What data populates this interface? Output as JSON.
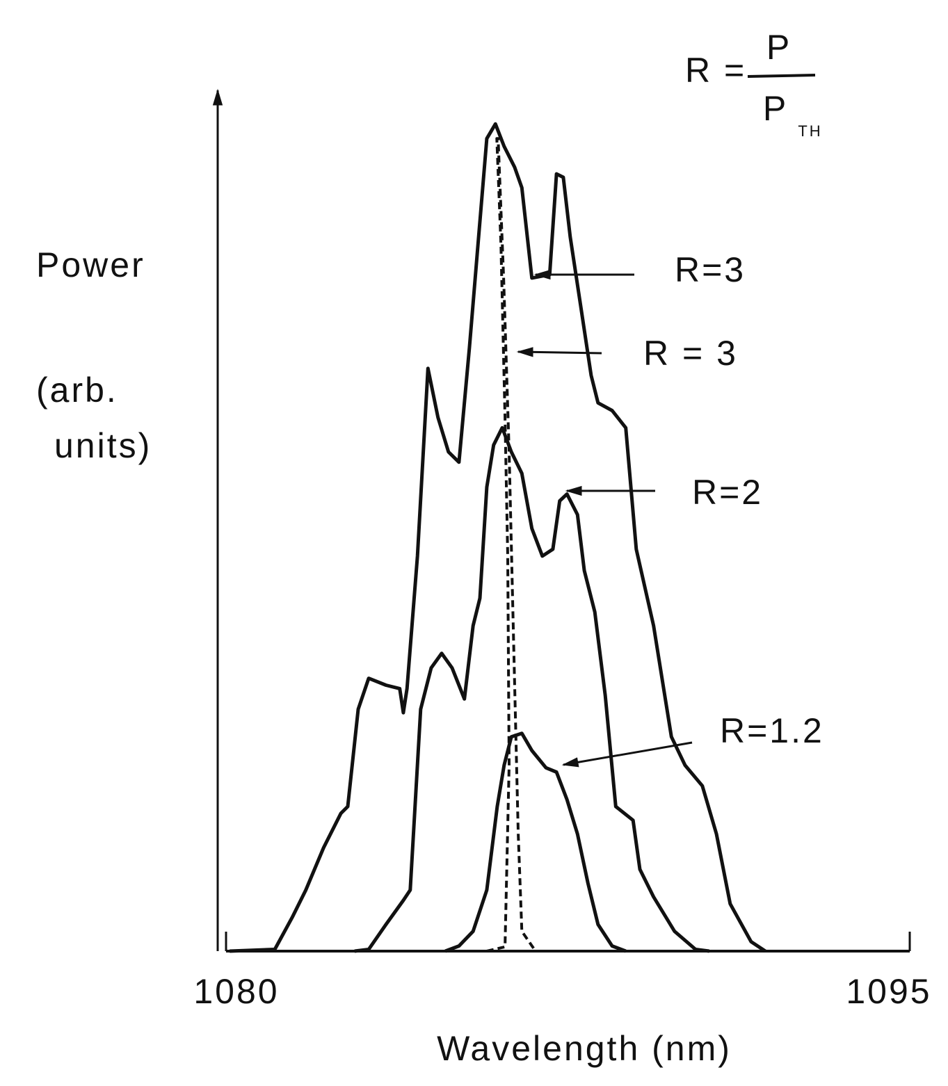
{
  "chart_data": {
    "type": "line",
    "xlabel": "Wavelength  (nm)",
    "ylabel": [
      "Power",
      "(arb.",
      "units)"
    ],
    "formula": {
      "lhs": "R =",
      "numerator": "P",
      "denominator": "P",
      "subscript": "TH"
    },
    "xlim": [
      1080,
      1095
    ],
    "xticks": [
      1080,
      1095
    ],
    "ylim": [
      0,
      100
    ],
    "series": [
      {
        "name": "R=3",
        "color": "#111111",
        "line_style": "solid",
        "x": [
          1080.08,
          1081.07,
          1081.45,
          1081.75,
          1082.14,
          1082.52,
          1082.67,
          1082.9,
          1083.13,
          1083.51,
          1083.81,
          1083.89,
          1083.97,
          1084.2,
          1084.43,
          1084.65,
          1084.88,
          1085.11,
          1085.34,
          1085.72,
          1085.91,
          1086.1,
          1086.33,
          1086.49,
          1086.71,
          1087.1,
          1087.25,
          1087.4,
          1087.55,
          1087.78,
          1088.01,
          1088.16,
          1088.47,
          1088.77,
          1089.0,
          1089.38,
          1089.77,
          1090.07,
          1090.45,
          1090.76,
          1091.06,
          1091.52,
          1091.83
        ],
        "values": [
          0,
          0.2,
          3.9,
          7.1,
          12.0,
          16.0,
          16.8,
          28.1,
          31.7,
          30.9,
          30.5,
          27.7,
          30.5,
          45.9,
          67.7,
          62.0,
          58.0,
          56.8,
          70.1,
          94.4,
          96.1,
          93.5,
          91.1,
          88.7,
          78.2,
          78.6,
          90.3,
          89.9,
          83.0,
          75.0,
          66.9,
          63.7,
          62.8,
          60.8,
          46.7,
          37.8,
          24.9,
          21.6,
          19.2,
          13.6,
          5.5,
          1.1,
          0
        ]
      },
      {
        "name": "R = 3",
        "color": "#111111",
        "line_style": "dashed",
        "x": [
          1085.72,
          1086.12,
          1086.21,
          1086.18,
          1086.12,
          1086.03,
          1085.94,
          1085.97,
          1086.09,
          1086.21,
          1086.3,
          1086.41,
          1086.49,
          1086.79
        ],
        "values": [
          0,
          0.5,
          21.6,
          45.9,
          62.0,
          82.2,
          94.4,
          94.4,
          78.2,
          58.0,
          37.8,
          13.6,
          2.3,
          0
        ]
      },
      {
        "name": "R=2",
        "color": "#111111",
        "line_style": "solid",
        "x": [
          1082.82,
          1083.13,
          1083.51,
          1083.89,
          1084.04,
          1084.27,
          1084.5,
          1084.73,
          1084.96,
          1085.23,
          1085.42,
          1085.57,
          1085.72,
          1085.87,
          1086.06,
          1086.26,
          1086.49,
          1086.71,
          1086.94,
          1087.17,
          1087.32,
          1087.48,
          1087.71,
          1087.86,
          1088.09,
          1088.32,
          1088.55,
          1088.93,
          1089.08,
          1089.38,
          1089.84,
          1090.3,
          1090.6
        ],
        "values": [
          0,
          0.2,
          3.1,
          5.9,
          7.1,
          28.1,
          32.9,
          34.6,
          32.9,
          29.3,
          37.8,
          41.0,
          53.9,
          58.8,
          60.8,
          58.0,
          55.5,
          49.1,
          45.9,
          46.7,
          52.3,
          53.1,
          50.7,
          44.2,
          39.4,
          29.7,
          16.8,
          15.2,
          9.5,
          6.3,
          2.3,
          0.2,
          0
        ]
      },
      {
        "name": "R=1.2",
        "color": "#111111",
        "line_style": "solid",
        "x": [
          1084.81,
          1085.11,
          1085.42,
          1085.72,
          1085.95,
          1086.1,
          1086.26,
          1086.49,
          1086.71,
          1087.02,
          1087.25,
          1087.48,
          1087.71,
          1087.94,
          1088.16,
          1088.47,
          1088.77
        ],
        "values": [
          0,
          0.6,
          2.3,
          7.1,
          16.8,
          21.6,
          24.9,
          25.3,
          23.3,
          21.3,
          20.8,
          17.6,
          13.6,
          7.9,
          3.1,
          0.6,
          0
        ]
      }
    ]
  }
}
